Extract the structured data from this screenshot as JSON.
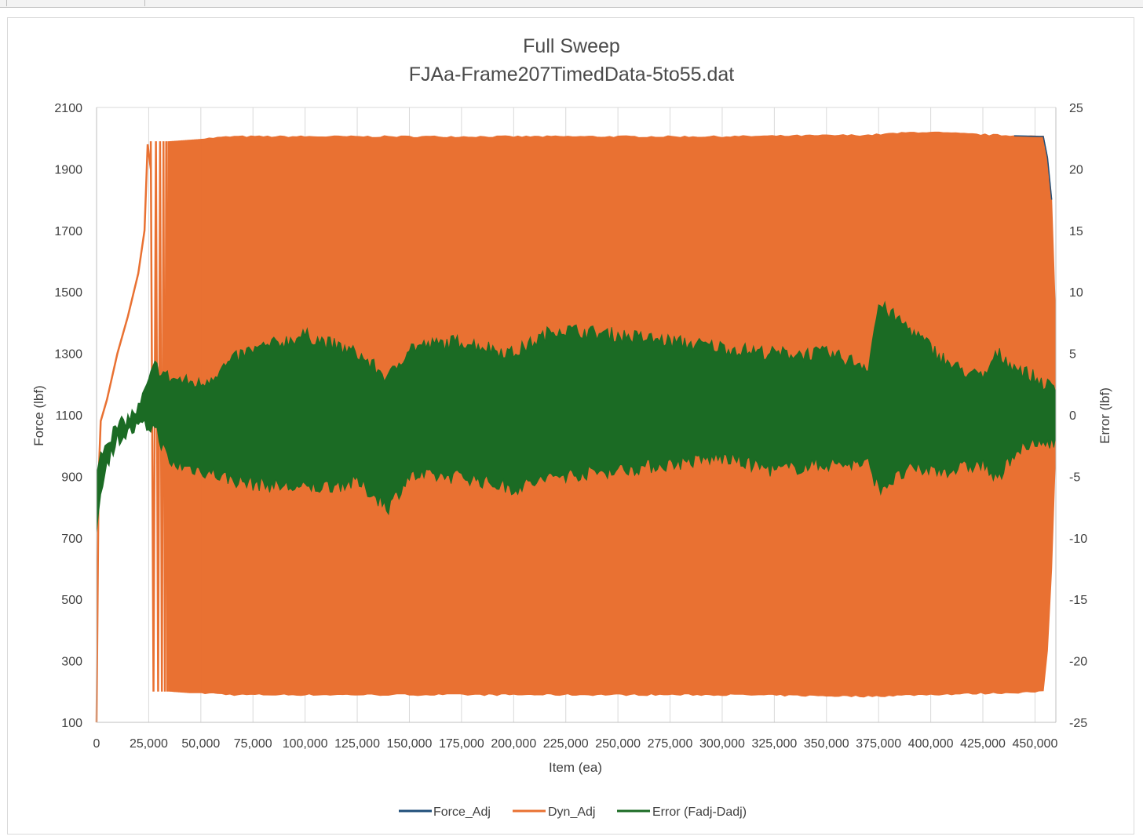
{
  "chart_data": {
    "type": "line",
    "title": "Full Sweep",
    "subtitle": "FJAa-Frame207TimedData-5to55.dat",
    "xlabel": "Item (ea)",
    "ylabel": "Force (lbf)",
    "y2label": "Error (lbf)",
    "xlim": [
      0,
      460000
    ],
    "ylim": [
      100,
      2100
    ],
    "y2lim": [
      -25,
      25
    ],
    "x_ticks": [
      "0",
      "25,000",
      "50,000",
      "75,000",
      "100,000",
      "125,000",
      "150,000",
      "175,000",
      "200,000",
      "225,000",
      "250,000",
      "275,000",
      "300,000",
      "325,000",
      "350,000",
      "375,000",
      "400,000",
      "425,000",
      "450,000"
    ],
    "x_tick_values": [
      0,
      25000,
      50000,
      75000,
      100000,
      125000,
      150000,
      175000,
      200000,
      225000,
      250000,
      275000,
      300000,
      325000,
      350000,
      375000,
      400000,
      425000,
      450000
    ],
    "y_ticks": [
      "2100",
      "1900",
      "1700",
      "1500",
      "1300",
      "1100",
      "900",
      "700",
      "500",
      "300",
      "100"
    ],
    "y_tick_values": [
      2100,
      1900,
      1700,
      1500,
      1300,
      1100,
      900,
      700,
      500,
      300,
      100
    ],
    "y2_ticks": [
      "25",
      "20",
      "15",
      "10",
      "5",
      "0",
      "-5",
      "-10",
      "-15",
      "-20",
      "-25"
    ],
    "y2_tick_values": [
      25,
      20,
      15,
      10,
      5,
      0,
      -5,
      -10,
      -15,
      -20,
      -25
    ],
    "grid": "vertical gridlines on",
    "legend_position": "bottom",
    "series": [
      {
        "name": "Force_Adj",
        "axis": "left",
        "color": "#1f4e79",
        "note_visibility": "hidden beneath Dyn_Adj"
      },
      {
        "name": "Dyn_Adj",
        "axis": "left",
        "color": "#e97132",
        "ramp_x": [
          0,
          1000,
          2000,
          5000,
          10000,
          15000,
          20000,
          23000,
          24500,
          26000
        ],
        "ramp_y": [
          100,
          900,
          1080,
          1150,
          1300,
          1420,
          1560,
          1700,
          1980,
          1900
        ],
        "envelope_x": [
          28000,
          35000,
          45000,
          55000,
          65000,
          100000,
          200000,
          300000,
          370000,
          395000,
          430000,
          455000,
          458000,
          460000
        ],
        "envelope_max": [
          1990,
          1990,
          1995,
          2000,
          2005,
          2005,
          2005,
          2005,
          2010,
          2020,
          2010,
          2005,
          1800,
          1400
        ],
        "envelope_min": [
          200,
          200,
          195,
          195,
          190,
          190,
          190,
          190,
          185,
          190,
          195,
          200,
          600,
          1000
        ]
      },
      {
        "name": "Error (Fadj-Dadj)",
        "axis": "right",
        "color": "#1b6b24",
        "envelope_x": [
          0,
          2000,
          5000,
          10000,
          20000,
          28000,
          35000,
          50000,
          70000,
          100000,
          125000,
          140000,
          150000,
          175000,
          200000,
          220000,
          250000,
          275000,
          300000,
          325000,
          350000,
          370000,
          375000,
          390000,
          410000,
          425000,
          432000,
          440000,
          460000
        ],
        "envelope_max": [
          -5,
          -3,
          -2,
          -1,
          0.5,
          4,
          3,
          2.5,
          5,
          6.5,
          5,
          3,
          5.5,
          6,
          5,
          7,
          6.5,
          6,
          5.5,
          5,
          5,
          4,
          9,
          7,
          4,
          3,
          5,
          4,
          2
        ],
        "envelope_min": [
          -9.5,
          -6,
          -4,
          -2,
          -1,
          -1,
          -4,
          -4.5,
          -5.5,
          -6,
          -5.5,
          -7.5,
          -5,
          -5,
          -6,
          -5,
          -4.5,
          -4,
          -3.5,
          -4.5,
          -4,
          -4,
          -6,
          -4.5,
          -4.5,
          -4,
          -5.5,
          -3,
          -2
        ]
      }
    ]
  }
}
